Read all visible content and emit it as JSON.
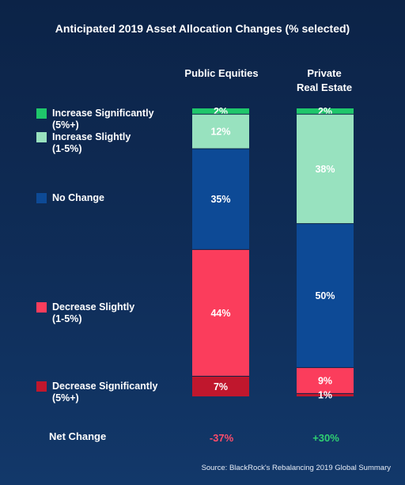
{
  "chart_data": {
    "type": "bar",
    "stacked": true,
    "title": "Anticipated 2019 Asset Allocation Changes (% selected)",
    "categories": [
      "Public Equities",
      "Private Real Estate"
    ],
    "category_lines": [
      [
        "Public Equities"
      ],
      [
        "Private",
        "Real Estate"
      ]
    ],
    "series": [
      {
        "name": "Increase Significantly",
        "sub": "(5%+)",
        "color": "#1fc76b",
        "values": [
          2,
          2
        ]
      },
      {
        "name": "Increase Slightly",
        "sub": "(1-5%)",
        "color": "#98e2bf",
        "values": [
          12,
          38
        ]
      },
      {
        "name": "No Change",
        "sub": "",
        "color": "#0d4a96",
        "values": [
          35,
          50
        ]
      },
      {
        "name": "Decrease Slightly",
        "sub": "(1-5%)",
        "color": "#fb3d5c",
        "values": [
          44,
          9
        ]
      },
      {
        "name": "Decrease Significantly",
        "sub": "(5%+)",
        "color": "#c0172d",
        "values": [
          7,
          1
        ]
      }
    ],
    "net_change_label": "Net Change",
    "net_change": [
      {
        "label": "-37%",
        "color": "#ff4d6b"
      },
      {
        "label": "+30%",
        "color": "#2fd072"
      }
    ],
    "ylim": [
      0,
      100
    ],
    "grid": false,
    "legend_position": "left"
  },
  "source": "Source: BlackRock's Rebalancing 2019 Global Summary"
}
